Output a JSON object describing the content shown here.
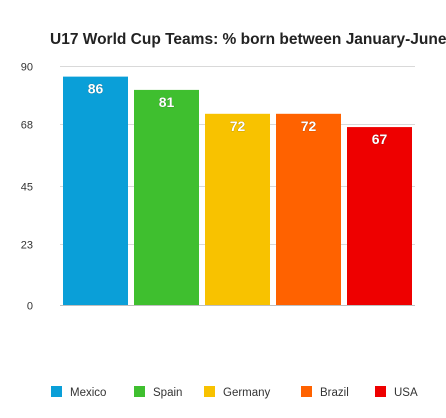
{
  "chart_data": {
    "type": "bar",
    "title": "U17 World Cup Teams: % born between January-June",
    "xlabel": "",
    "ylabel": "",
    "ylim": [
      0,
      90
    ],
    "yticks": [
      0,
      23,
      45,
      68,
      90
    ],
    "categories": [
      "Mexico",
      "Spain",
      "Germany",
      "Brazil",
      "USA"
    ],
    "values": [
      86,
      81,
      72,
      72,
      67
    ],
    "data_labels": [
      "86",
      "81",
      "72",
      "72",
      "67"
    ],
    "colors": [
      "#0a9fd8",
      "#3fbf2f",
      "#f8c200",
      "#ff6200",
      "#ee0000"
    ],
    "legend": {
      "position": "bottom",
      "entries": [
        "Mexico",
        "Spain",
        "Germany",
        "Brazil",
        "USA"
      ]
    },
    "grid": true,
    "gridline_color": "#d9d9d9"
  }
}
